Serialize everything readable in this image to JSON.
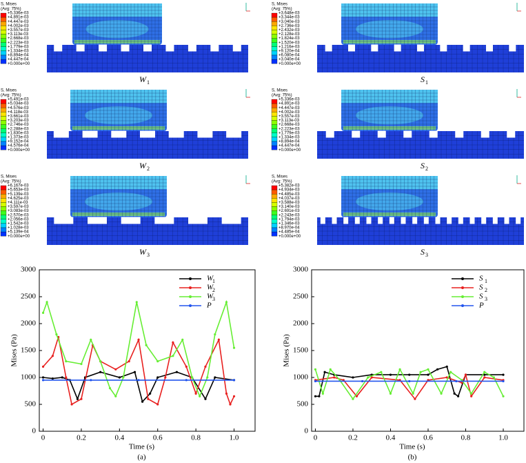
{
  "panels": [
    {
      "legend_title": "S, Mises",
      "legend_avg": "(Avg: 75%)",
      "legend_values": [
        "+5.336e-03",
        "+4.891e-03",
        "+4.447e-03",
        "+4.002e-03",
        "+3.557e-03",
        "+3.113e-03",
        "+2.668e-03",
        "+2.223e-03",
        "+1.779e-03",
        "+1.334e-03",
        "+8.894e-04",
        "+4.447e-04",
        "+0.000e+00"
      ],
      "label": "W",
      "label_sub": "1"
    },
    {
      "legend_title": "S, Mises",
      "legend_avg": "(Avg: 75%)",
      "legend_values": [
        "+3.648e-03",
        "+3.344e-03",
        "+3.040e-03",
        "+2.736e-03",
        "+2.432e-03",
        "+2.128e-03",
        "+1.824e-03",
        "+1.520e-03",
        "+1.216e-03",
        "+9.120e-04",
        "+6.080e-04",
        "+3.040e-04",
        "+0.000e+00"
      ],
      "label": "S",
      "label_sub": "1"
    },
    {
      "legend_title": "S, Mises",
      "legend_avg": "(Avg: 75%)",
      "legend_values": [
        "+5.491e-03",
        "+5.034e-03",
        "+4.576e-03",
        "+4.118e-03",
        "+3.661e-03",
        "+3.203e-03",
        "+2.746e-03",
        "+2.288e-03",
        "+1.830e-03",
        "+1.373e-03",
        "+9.152e-04",
        "+4.576e-04",
        "+0.000e+00"
      ],
      "label": "W",
      "label_sub": "2"
    },
    {
      "legend_title": "S, Mises",
      "legend_avg": "(Avg: 75%)",
      "legend_values": [
        "+5.336e-03",
        "+4.891e-03",
        "+4.447e-03",
        "+4.002e-03",
        "+3.557e-03",
        "+3.113e-03",
        "+2.668e-03",
        "+2.223e-03",
        "+1.779e-03",
        "+1.334e-03",
        "+8.894e-04",
        "+4.447e-04",
        "+0.000e+00"
      ],
      "label": "S",
      "label_sub": "2"
    },
    {
      "legend_title": "S, Mises",
      "legend_avg": "(Avg: 75%)",
      "legend_values": [
        "+6.167e-03",
        "+5.653e-03",
        "+5.139e-03",
        "+4.625e-03",
        "+4.111e-03",
        "+3.597e-03",
        "+3.083e-03",
        "+2.570e-03",
        "+2.056e-03",
        "+1.542e-03",
        "+1.028e-03",
        "+5.139e-04",
        "+0.000e+00"
      ],
      "label": "W",
      "label_sub": "3"
    },
    {
      "legend_title": "S, Mises",
      "legend_avg": "(Avg: 75%)",
      "legend_values": [
        "+5.382e-03",
        "+4.934e-03",
        "+4.485e-03",
        "+4.037e-03",
        "+3.588e-03",
        "+3.140e-03",
        "+2.691e-03",
        "+2.243e-03",
        "+1.794e-03",
        "+1.346e-03",
        "+8.970e-04",
        "+4.485e-04",
        "+0.000e+00"
      ],
      "label": "S",
      "label_sub": "3"
    }
  ],
  "chart_data": [
    {
      "type": "line",
      "panel_label": "(a)",
      "xlabel": "Time (s)",
      "ylabel": "Mises (Pa)",
      "xlim": [
        -0.02,
        1.11
      ],
      "ylim": [
        0,
        3000
      ],
      "xticks": [
        0,
        0.2,
        0.4,
        0.6,
        0.8,
        {
          "value": 1,
          "label": "1.0"
        }
      ],
      "yticks": [
        0,
        500,
        1000,
        1500,
        2000,
        2500,
        3000
      ],
      "series": [
        {
          "name": "W",
          "name_sub": "1",
          "color": "#000000",
          "x": [
            0,
            0.05,
            0.1,
            0.14,
            0.18,
            0.22,
            0.3,
            0.4,
            0.48,
            0.52,
            0.56,
            0.6,
            0.7,
            0.78,
            0.85,
            0.9,
            1.0
          ],
          "values": [
            1000,
            980,
            1000,
            950,
            600,
            1000,
            1100,
            1000,
            1100,
            550,
            700,
            1000,
            1100,
            1000,
            600,
            1000,
            950
          ]
        },
        {
          "name": "W",
          "name_sub": "2",
          "color": "#e8201f",
          "x": [
            0,
            0.05,
            0.08,
            0.12,
            0.15,
            0.2,
            0.26,
            0.3,
            0.38,
            0.45,
            0.5,
            0.55,
            0.6,
            0.64,
            0.68,
            0.75,
            0.8,
            0.85,
            0.92,
            0.96,
            0.98,
            1.0
          ],
          "values": [
            1200,
            1400,
            1750,
            1000,
            500,
            600,
            1600,
            1300,
            1150,
            1300,
            1700,
            600,
            500,
            1000,
            1650,
            1200,
            700,
            1200,
            1700,
            700,
            500,
            650
          ]
        },
        {
          "name": "W",
          "name_sub": "3",
          "color": "#66ee33",
          "x": [
            0,
            0.02,
            0.07,
            0.12,
            0.2,
            0.25,
            0.3,
            0.35,
            0.38,
            0.42,
            0.49,
            0.54,
            0.6,
            0.68,
            0.73,
            0.78,
            0.82,
            0.86,
            0.9,
            0.96,
            1.0
          ],
          "values": [
            2200,
            2400,
            1800,
            1300,
            1250,
            1700,
            1300,
            800,
            650,
            1000,
            2400,
            1600,
            1300,
            1400,
            1700,
            1000,
            650,
            1000,
            1800,
            2400,
            1550
          ]
        },
        {
          "name": "P",
          "color": "#2255ee",
          "x": [
            0,
            0.25,
            0.5,
            0.75,
            1.0
          ],
          "values": [
            950,
            950,
            950,
            950,
            950
          ]
        }
      ]
    },
    {
      "type": "line",
      "panel_label": "(b)",
      "xlabel": "Time (s)",
      "ylabel": "Mises (Pa)",
      "xlim": [
        -0.02,
        1.11
      ],
      "ylim": [
        0,
        3000
      ],
      "xticks": [
        0,
        0.2,
        0.4,
        0.6,
        0.8,
        {
          "value": 1,
          "label": "1.0"
        }
      ],
      "yticks": [
        0,
        500,
        1000,
        1500,
        2000,
        2500,
        3000
      ],
      "series": [
        {
          "name": "S",
          "name_sub": "1",
          "color": "#000000",
          "x": [
            0,
            0.02,
            0.05,
            0.1,
            0.2,
            0.3,
            0.4,
            0.5,
            0.6,
            0.65,
            0.7,
            0.74,
            0.76,
            0.8,
            0.9,
            1.0
          ],
          "values": [
            650,
            650,
            1100,
            1050,
            1000,
            1050,
            1050,
            1050,
            1050,
            1150,
            1200,
            700,
            650,
            1050,
            1050,
            1050
          ]
        },
        {
          "name": "S",
          "name_sub": "2",
          "color": "#e8201f",
          "x": [
            0,
            0.1,
            0.15,
            0.22,
            0.3,
            0.45,
            0.53,
            0.6,
            0.7,
            0.78,
            0.8,
            0.83,
            0.9,
            1.0
          ],
          "values": [
            950,
            1000,
            950,
            650,
            1000,
            950,
            600,
            950,
            1000,
            900,
            1050,
            650,
            1000,
            950
          ]
        },
        {
          "name": "S",
          "name_sub": "3",
          "color": "#66ee33",
          "x": [
            0,
            0.04,
            0.08,
            0.13,
            0.2,
            0.28,
            0.35,
            0.4,
            0.45,
            0.52,
            0.56,
            0.6,
            0.67,
            0.72,
            0.78,
            0.83,
            0.9,
            0.95,
            1.0
          ],
          "values": [
            1150,
            700,
            1150,
            950,
            600,
            1000,
            1100,
            700,
            1150,
            700,
            1100,
            1150,
            700,
            1100,
            950,
            700,
            1100,
            1000,
            650
          ]
        },
        {
          "name": "P",
          "color": "#2255ee",
          "x": [
            0,
            0.25,
            0.5,
            0.75,
            1.0
          ],
          "values": [
            930,
            930,
            930,
            930,
            930
          ]
        }
      ]
    }
  ]
}
